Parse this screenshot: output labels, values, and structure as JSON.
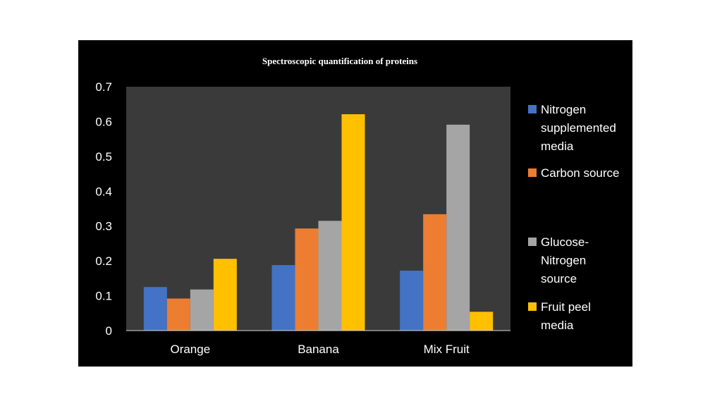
{
  "chart_data": {
    "type": "bar",
    "title": "Spectroscopic quantification  of proteins",
    "categories": [
      "Orange",
      "Banana",
      "Mix Fruit"
    ],
    "ylim": [
      0,
      0.7
    ],
    "yticks": [
      "0",
      "0.1",
      "0.2",
      "0.3",
      "0.4",
      "0.5",
      "0.6",
      "0.7"
    ],
    "grid": false,
    "legend_position": "right",
    "series": [
      {
        "name": "Nitrogen supplemented media",
        "legend_lines": [
          "Nitrogen",
          "supplemented",
          "media"
        ],
        "color": "#4472C4",
        "values": [
          0.125,
          0.188,
          0.172
        ]
      },
      {
        "name": "Carbon source",
        "legend_lines": [
          "Carbon source"
        ],
        "color": "#ED7D31",
        "values": [
          0.092,
          0.293,
          0.334
        ]
      },
      {
        "name": "Glucose-Nitrogen source",
        "legend_lines": [
          "Glucose-",
          "Nitrogen",
          "source"
        ],
        "color": "#A5A5A5",
        "values": [
          0.118,
          0.315,
          0.591
        ]
      },
      {
        "name": "Fruit peel media",
        "legend_lines": [
          "Fruit peel",
          "media"
        ],
        "color": "#FFC000",
        "values": [
          0.206,
          0.621,
          0.054
        ]
      }
    ],
    "colors": {
      "panel_background": "#000000",
      "plot_background": "#3A3A3A",
      "text": "#FFFFFF"
    }
  }
}
